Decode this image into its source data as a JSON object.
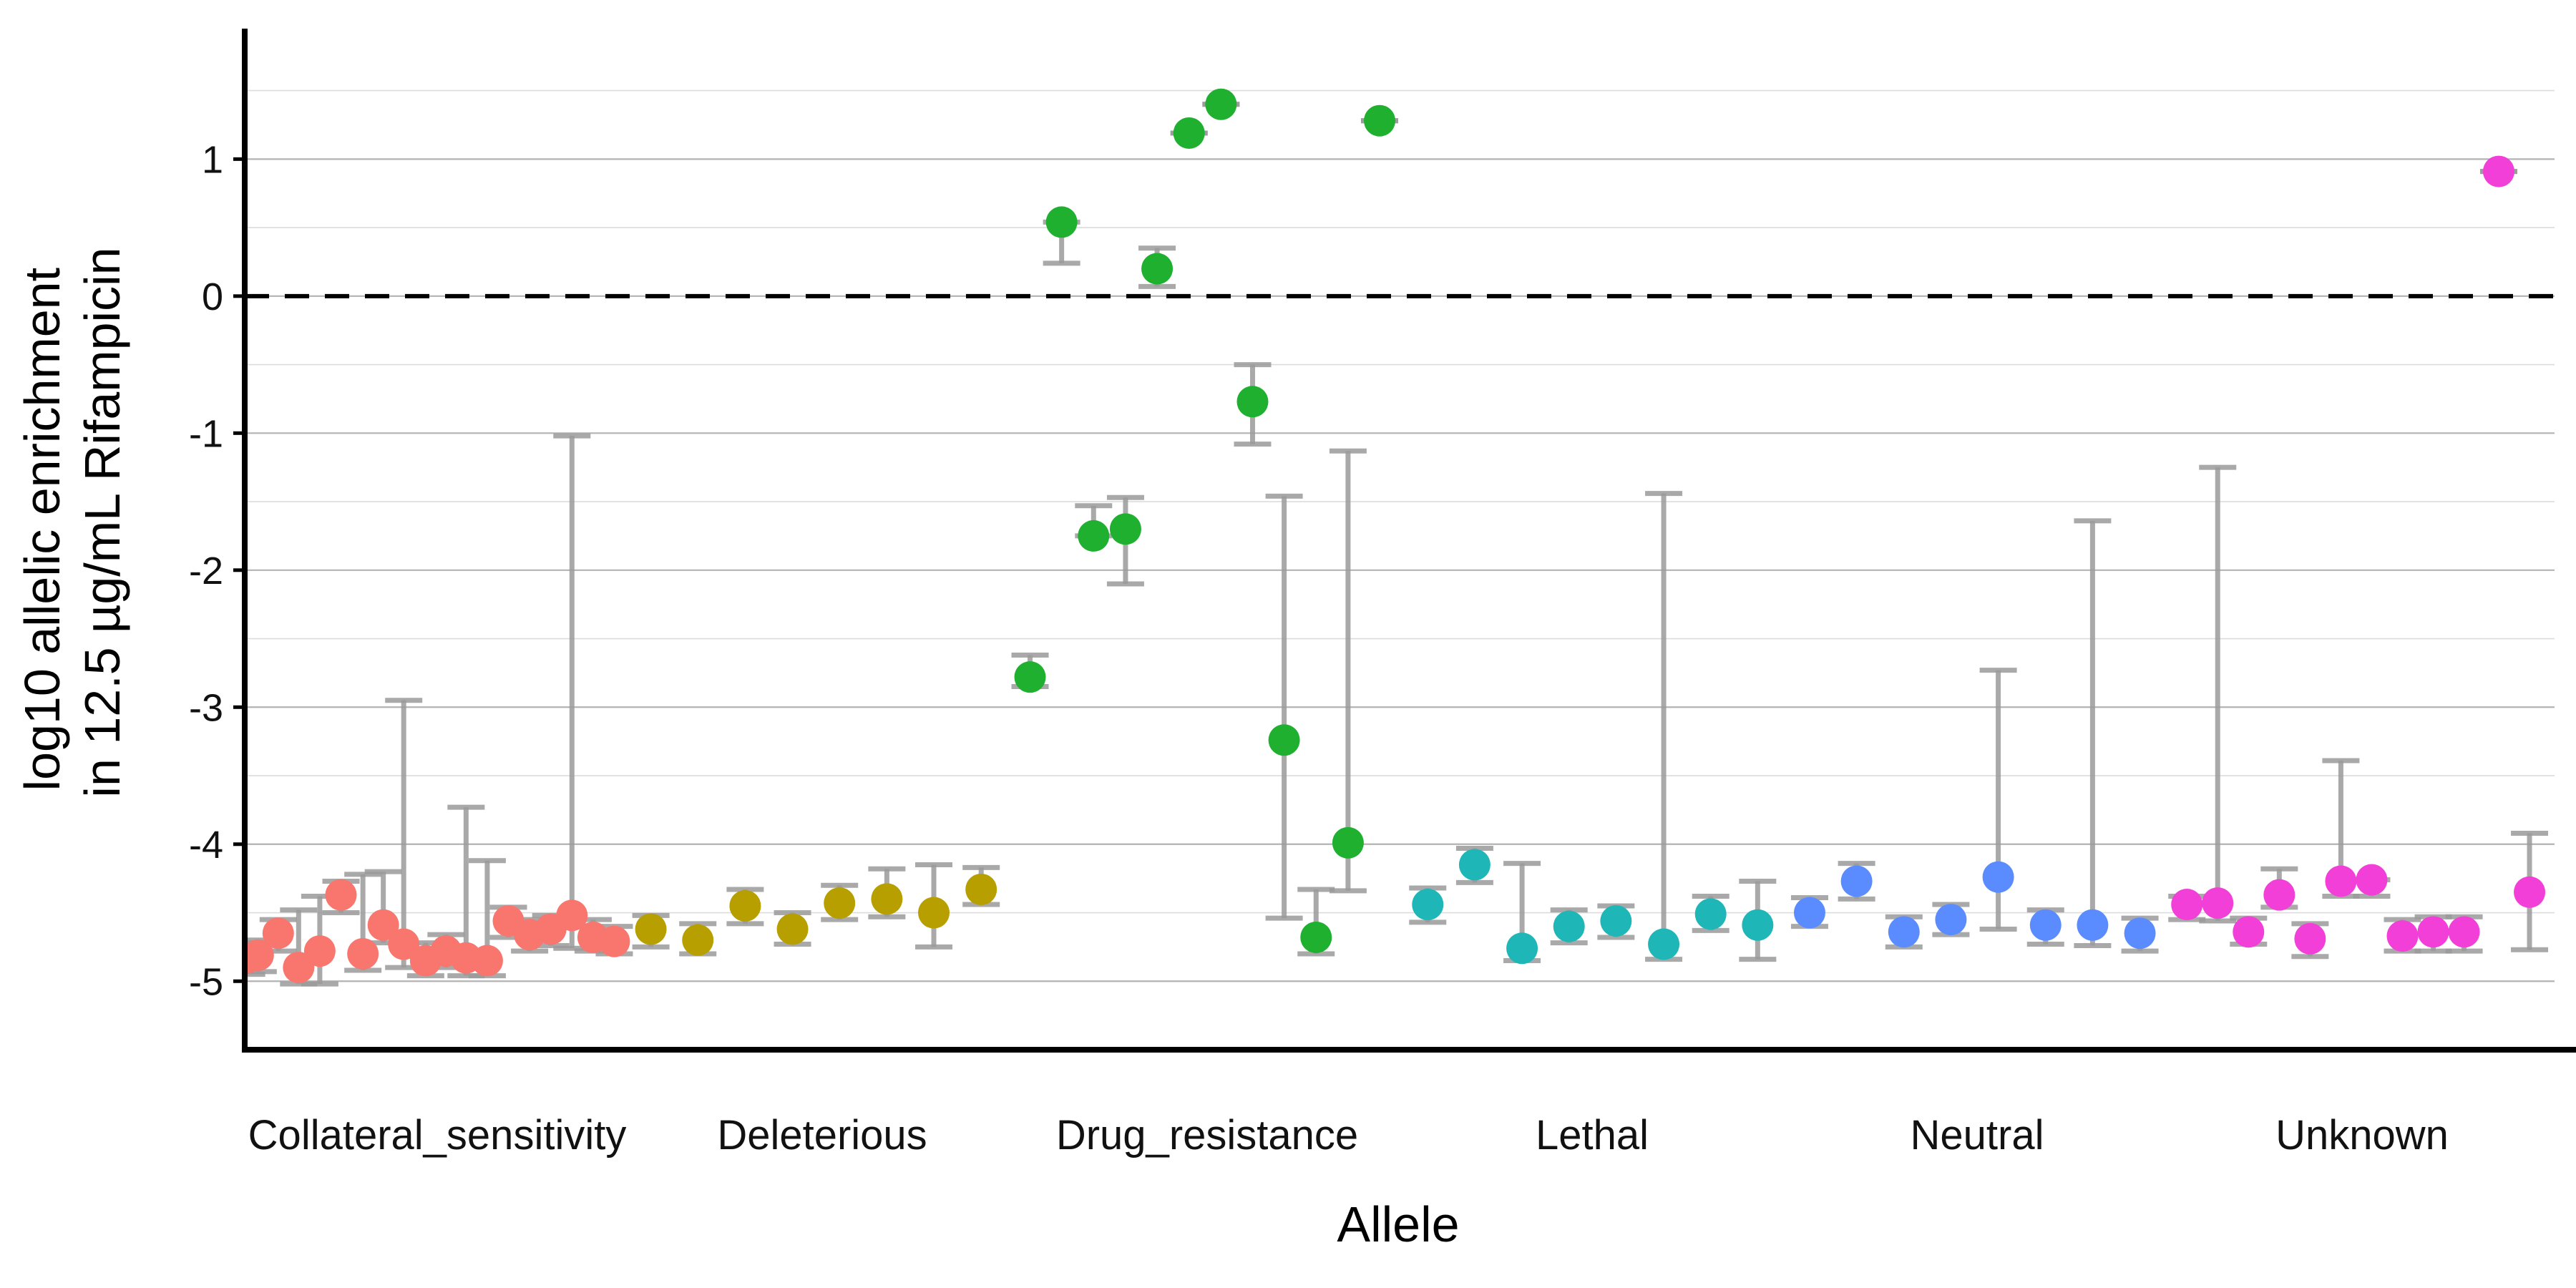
{
  "chart_data": {
    "type": "scatter",
    "xlabel": "Allele",
    "ylabel_lines": [
      "log10 allelic enrichment",
      "in 12.5 µg/mL Rifampicin"
    ],
    "ylim": [
      -5.5,
      1.9
    ],
    "yticks": [
      1,
      0,
      -1,
      -2,
      -3,
      -4,
      -5
    ],
    "reference_line": 0,
    "grid": true,
    "categories": [
      {
        "name": "Collateral_sensitivity",
        "label": "Collateral_sensitivity",
        "color": "#F8766D"
      },
      {
        "name": "Deleterious",
        "label": "Deleterious",
        "color": "#B79F00"
      },
      {
        "name": "Drug_resistance",
        "label": "Drug_resistance",
        "color": "#1FB030"
      },
      {
        "name": "Lethal",
        "label": "Lethal",
        "color": "#1FB6B8"
      },
      {
        "name": "Neutral",
        "label": "Neutral",
        "color": "#5B8CFF"
      },
      {
        "name": "Unknown",
        "label": "Unknown",
        "color": "#F23FD8"
      }
    ],
    "points": [
      {
        "cat": 0,
        "x": 0.005,
        "y": -4.83,
        "lo": -4.95,
        "hi": -4.72
      },
      {
        "cat": 0,
        "x": 0.035,
        "y": -4.81,
        "lo": -4.93,
        "hi": -4.7
      },
      {
        "cat": 0,
        "x": 0.087,
        "y": -4.65,
        "lo": -4.78,
        "hi": -4.55
      },
      {
        "cat": 0,
        "x": 0.14,
        "y": -4.9,
        "lo": -5.02,
        "hi": -4.48
      },
      {
        "cat": 0,
        "x": 0.195,
        "y": -4.78,
        "lo": -5.02,
        "hi": -4.38
      },
      {
        "cat": 0,
        "x": 0.25,
        "y": -4.37,
        "lo": -4.5,
        "hi": -4.27
      },
      {
        "cat": 0,
        "x": 0.307,
        "y": -4.8,
        "lo": -4.92,
        "hi": -4.22
      },
      {
        "cat": 0,
        "x": 0.36,
        "y": -4.59,
        "lo": -4.72,
        "hi": -4.2
      },
      {
        "cat": 0,
        "x": 0.413,
        "y": -4.73,
        "lo": -4.9,
        "hi": -2.95
      },
      {
        "cat": 0,
        "x": 0.47,
        "y": -4.85,
        "lo": -4.96,
        "hi": -4.72
      },
      {
        "cat": 0,
        "x": 0.523,
        "y": -4.78,
        "lo": -4.9,
        "hi": -4.66
      },
      {
        "cat": 0,
        "x": 0.575,
        "y": -4.83,
        "lo": -4.96,
        "hi": -3.73
      },
      {
        "cat": 0,
        "x": 0.63,
        "y": -4.85,
        "lo": -4.96,
        "hi": -4.12
      },
      {
        "cat": 0,
        "x": 0.685,
        "y": -4.56,
        "lo": -4.68,
        "hi": -4.46
      },
      {
        "cat": 0,
        "x": 0.74,
        "y": -4.66,
        "lo": -4.78,
        "hi": -4.55
      },
      {
        "cat": 0,
        "x": 0.795,
        "y": -4.62,
        "lo": -4.74,
        "hi": -4.52
      },
      {
        "cat": 0,
        "x": 0.85,
        "y": -4.52,
        "lo": -4.76,
        "hi": -1.02
      },
      {
        "cat": 0,
        "x": 0.905,
        "y": -4.68,
        "lo": -4.78,
        "hi": -4.55
      },
      {
        "cat": 0,
        "x": 0.96,
        "y": -4.71,
        "lo": -4.8,
        "hi": -4.6
      },
      {
        "cat": 1,
        "x": 1.055,
        "y": -4.62,
        "lo": -4.75,
        "hi": -4.52
      },
      {
        "cat": 1,
        "x": 1.177,
        "y": -4.7,
        "lo": -4.8,
        "hi": -4.58
      },
      {
        "cat": 1,
        "x": 1.3,
        "y": -4.45,
        "lo": -4.58,
        "hi": -4.33
      },
      {
        "cat": 1,
        "x": 1.423,
        "y": -4.62,
        "lo": -4.73,
        "hi": -4.5
      },
      {
        "cat": 1,
        "x": 1.545,
        "y": -4.43,
        "lo": -4.55,
        "hi": -4.3
      },
      {
        "cat": 1,
        "x": 1.668,
        "y": -4.4,
        "lo": -4.53,
        "hi": -4.18
      },
      {
        "cat": 1,
        "x": 1.79,
        "y": -4.5,
        "lo": -4.75,
        "hi": -4.15
      },
      {
        "cat": 1,
        "x": 1.913,
        "y": -4.33,
        "lo": -4.44,
        "hi": -4.17
      },
      {
        "cat": 2,
        "x": 2.04,
        "y": -2.78,
        "lo": -2.85,
        "hi": -2.62
      },
      {
        "cat": 2,
        "x": 2.122,
        "y": 0.54,
        "lo": 0.24,
        "hi": 0.54
      },
      {
        "cat": 2,
        "x": 2.205,
        "y": -1.75,
        "lo": -1.75,
        "hi": -1.53
      },
      {
        "cat": 2,
        "x": 2.288,
        "y": -1.7,
        "lo": -2.1,
        "hi": -1.47
      },
      {
        "cat": 2,
        "x": 2.37,
        "y": 0.2,
        "lo": 0.07,
        "hi": 0.35
      },
      {
        "cat": 2,
        "x": 2.453,
        "y": 1.19,
        "lo": 1.19,
        "hi": 1.19
      },
      {
        "cat": 2,
        "x": 2.536,
        "y": 1.4,
        "lo": 1.4,
        "hi": 1.4
      },
      {
        "cat": 2,
        "x": 2.618,
        "y": -0.77,
        "lo": -1.08,
        "hi": -0.5
      },
      {
        "cat": 2,
        "x": 2.7,
        "y": -3.24,
        "lo": -4.54,
        "hi": -1.46
      },
      {
        "cat": 2,
        "x": 2.783,
        "y": -4.68,
        "lo": -4.8,
        "hi": -4.33
      },
      {
        "cat": 2,
        "x": 2.866,
        "y": -3.99,
        "lo": -4.34,
        "hi": -1.13
      },
      {
        "cat": 2,
        "x": 2.948,
        "y": 1.28,
        "lo": 1.28,
        "hi": 1.28
      },
      {
        "cat": 3,
        "x": 3.073,
        "y": -4.44,
        "lo": -4.57,
        "hi": -4.32
      },
      {
        "cat": 3,
        "x": 3.195,
        "y": -4.15,
        "lo": -4.28,
        "hi": -4.03
      },
      {
        "cat": 3,
        "x": 3.318,
        "y": -4.76,
        "lo": -4.85,
        "hi": -4.14
      },
      {
        "cat": 3,
        "x": 3.44,
        "y": -4.6,
        "lo": -4.72,
        "hi": -4.48
      },
      {
        "cat": 3,
        "x": 3.562,
        "y": -4.56,
        "lo": -4.68,
        "hi": -4.45
      },
      {
        "cat": 3,
        "x": 3.686,
        "y": -4.73,
        "lo": -4.84,
        "hi": -1.44
      },
      {
        "cat": 3,
        "x": 3.808,
        "y": -4.51,
        "lo": -4.63,
        "hi": -4.38
      },
      {
        "cat": 3,
        "x": 3.93,
        "y": -4.59,
        "lo": -4.84,
        "hi": -4.27
      },
      {
        "cat": 4,
        "x": 4.065,
        "y": -4.5,
        "lo": -4.6,
        "hi": -4.39
      },
      {
        "cat": 4,
        "x": 4.187,
        "y": -4.27,
        "lo": -4.4,
        "hi": -4.14
      },
      {
        "cat": 4,
        "x": 4.31,
        "y": -4.64,
        "lo": -4.75,
        "hi": -4.53
      },
      {
        "cat": 4,
        "x": 4.432,
        "y": -4.55,
        "lo": -4.66,
        "hi": -4.44
      },
      {
        "cat": 4,
        "x": 4.555,
        "y": -4.24,
        "lo": -4.62,
        "hi": -2.73
      },
      {
        "cat": 4,
        "x": 4.678,
        "y": -4.59,
        "lo": -4.73,
        "hi": -4.48
      },
      {
        "cat": 4,
        "x": 4.8,
        "y": -4.59,
        "lo": -4.74,
        "hi": -1.64
      },
      {
        "cat": 4,
        "x": 4.923,
        "y": -4.65,
        "lo": -4.78,
        "hi": -4.54
      },
      {
        "cat": 5,
        "x": 5.045,
        "y": -4.44,
        "lo": -4.55,
        "hi": -4.38
      },
      {
        "cat": 5,
        "x": 5.125,
        "y": -4.43,
        "lo": -4.56,
        "hi": -1.25
      },
      {
        "cat": 5,
        "x": 5.205,
        "y": -4.64,
        "lo": -4.73,
        "hi": -4.54
      },
      {
        "cat": 5,
        "x": 5.285,
        "y": -4.37,
        "lo": -4.46,
        "hi": -4.18
      },
      {
        "cat": 5,
        "x": 5.365,
        "y": -4.69,
        "lo": -4.82,
        "hi": -4.58
      },
      {
        "cat": 5,
        "x": 5.445,
        "y": -4.27,
        "lo": -4.38,
        "hi": -3.39
      },
      {
        "cat": 5,
        "x": 5.525,
        "y": -4.26,
        "lo": -4.38,
        "hi": -4.26
      },
      {
        "cat": 5,
        "x": 5.605,
        "y": -4.67,
        "lo": -4.78,
        "hi": -4.55
      },
      {
        "cat": 5,
        "x": 5.685,
        "y": -4.64,
        "lo": -4.78,
        "hi": -4.53
      },
      {
        "cat": 5,
        "x": 5.765,
        "y": -4.64,
        "lo": -4.78,
        "hi": -4.53
      },
      {
        "cat": 5,
        "x": 5.855,
        "y": 0.91,
        "lo": 0.91,
        "hi": 0.91
      },
      {
        "cat": 5,
        "x": 5.935,
        "y": -4.35,
        "lo": -4.77,
        "hi": -3.92
      }
    ]
  }
}
